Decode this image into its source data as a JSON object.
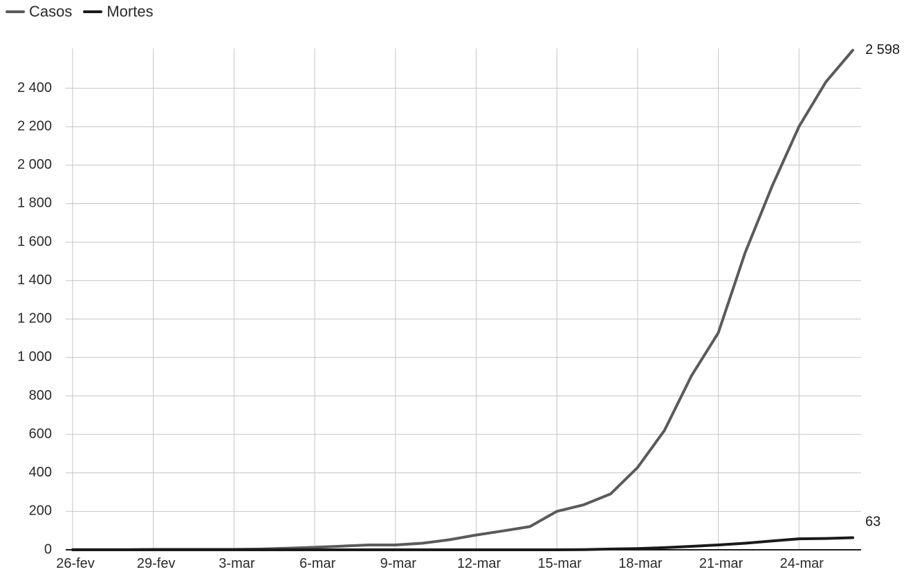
{
  "chart_data": {
    "type": "line",
    "x": [
      "26-fev",
      "27-fev",
      "28-fev",
      "29-fev",
      "1-mar",
      "2-mar",
      "3-mar",
      "4-mar",
      "5-mar",
      "6-mar",
      "7-mar",
      "8-mar",
      "9-mar",
      "10-mar",
      "11-mar",
      "12-mar",
      "13-mar",
      "14-mar",
      "15-mar",
      "16-mar",
      "17-mar",
      "18-mar",
      "19-mar",
      "20-mar",
      "21-mar",
      "22-mar",
      "23-mar",
      "24-mar",
      "25-mar",
      "26-mar"
    ],
    "x_tick_labels": [
      "26-fev",
      "29-fev",
      "3-mar",
      "6-mar",
      "9-mar",
      "12-mar",
      "15-mar",
      "18-mar",
      "21-mar",
      "24-mar"
    ],
    "series": [
      {
        "name": "Casos",
        "color": "#5a5a5a",
        "values": [
          1,
          1,
          1,
          2,
          2,
          2,
          2,
          4,
          8,
          13,
          19,
          25,
          25,
          34,
          52,
          77,
          98,
          121,
          200,
          234,
          291,
          428,
          621,
          904,
          1128,
          1546,
          1891,
          2201,
          2433,
          2598
        ]
      },
      {
        "name": "Mortes",
        "color": "#1a1a1a",
        "values": [
          0,
          0,
          0,
          0,
          0,
          0,
          0,
          0,
          0,
          0,
          0,
          0,
          0,
          0,
          0,
          0,
          0,
          0,
          0,
          1,
          4,
          6,
          11,
          18,
          25,
          34,
          46,
          57,
          59,
          63
        ]
      }
    ],
    "end_labels": {
      "Casos": "2 598",
      "Mortes": "63"
    },
    "ylim": [
      0,
      2600
    ],
    "y_ticks": [
      0,
      200,
      400,
      600,
      800,
      1000,
      1200,
      1400,
      1600,
      1800,
      2000,
      2200,
      2400
    ],
    "y_tick_labels": [
      "0",
      "200",
      "400",
      "600",
      "800",
      "1 000",
      "1 200",
      "1 400",
      "1 600",
      "1 800",
      "2 000",
      "2 200",
      "2 400"
    ],
    "legend": "top-left",
    "grid": true
  }
}
